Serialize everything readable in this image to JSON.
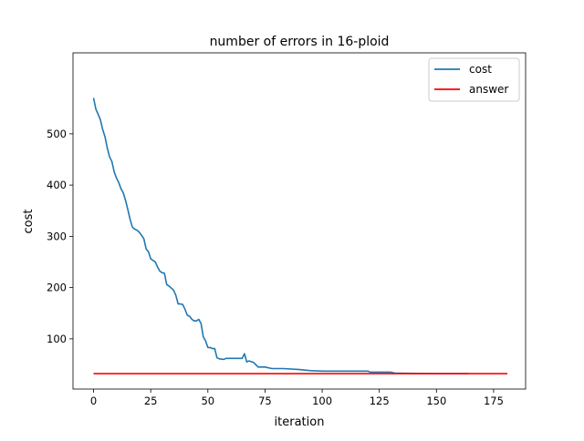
{
  "chart_data": {
    "type": "line",
    "title": "number of errors in 16-ploid",
    "xlabel": "iteration",
    "ylabel": "cost",
    "xlim": [
      -9,
      189
    ],
    "ylim": [
      2,
      658
    ],
    "xticks": [
      0,
      25,
      50,
      75,
      100,
      125,
      150,
      175
    ],
    "yticks": [
      100,
      200,
      300,
      400,
      500
    ],
    "grid": false,
    "legend_position": "top-right",
    "series": [
      {
        "name": "cost",
        "color": "#1f77b4",
        "x": [
          0,
          1,
          2,
          3,
          4,
          5,
          6,
          7,
          8,
          9,
          10,
          11,
          12,
          13,
          14,
          15,
          16,
          17,
          18,
          19,
          20,
          21,
          22,
          23,
          24,
          25,
          26,
          27,
          28,
          29,
          30,
          31,
          32,
          33,
          34,
          35,
          36,
          37,
          38,
          39,
          40,
          41,
          42,
          43,
          44,
          45,
          46,
          47,
          48,
          49,
          50,
          51,
          52,
          53,
          54,
          55,
          57,
          58,
          60,
          64,
          65,
          66,
          67,
          68,
          70,
          72,
          75,
          78,
          80,
          83,
          90,
          95,
          100,
          120,
          121,
          130,
          131,
          132,
          150,
          164
        ],
        "y": [
          570,
          548,
          538,
          527,
          508,
          494,
          472,
          455,
          446,
          426,
          414,
          405,
          393,
          385,
          370,
          352,
          333,
          318,
          314,
          312,
          308,
          302,
          295,
          275,
          270,
          256,
          253,
          250,
          240,
          232,
          229,
          228,
          206,
          203,
          199,
          195,
          185,
          168,
          168,
          167,
          158,
          146,
          144,
          138,
          135,
          135,
          138,
          130,
          104,
          96,
          83,
          83,
          81,
          81,
          63,
          61,
          60,
          62,
          62,
          62,
          62,
          71,
          55,
          57,
          54,
          45,
          45,
          42,
          42,
          42,
          40,
          38,
          37,
          37,
          35,
          35,
          34,
          33,
          32,
          32
        ]
      },
      {
        "name": "answer",
        "color": "#ff0000",
        "x": [
          0,
          181
        ],
        "y": [
          32,
          32
        ]
      }
    ]
  }
}
